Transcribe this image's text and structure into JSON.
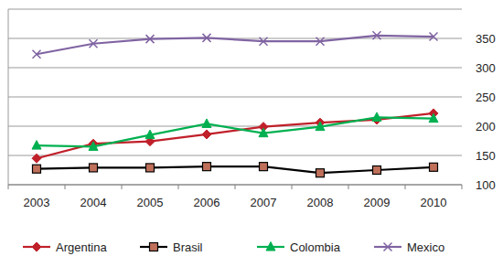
{
  "chart_data": {
    "type": "line",
    "categories": [
      "2003",
      "2004",
      "2005",
      "2006",
      "2007",
      "2008",
      "2009",
      "2010"
    ],
    "series": [
      {
        "name": "Argentina",
        "color": "#c0202a",
        "marker": "diamond",
        "values": [
          145,
          170,
          174,
          186,
          199,
          206,
          211,
          222
        ]
      },
      {
        "name": "Brasil",
        "color": "#000000",
        "marker": "square",
        "values": [
          127,
          129,
          129,
          131,
          131,
          120,
          125,
          130
        ]
      },
      {
        "name": "Colombia",
        "color": "#00b050",
        "marker": "triangle",
        "values": [
          167,
          165,
          185,
          204,
          188,
          199,
          215,
          213
        ]
      },
      {
        "name": "Mexico",
        "color": "#8064a2",
        "marker": "x",
        "values": [
          323,
          341,
          349,
          351,
          345,
          345,
          355,
          353
        ]
      }
    ],
    "ylim": [
      100,
      400
    ],
    "yticks": [
      100,
      150,
      200,
      250,
      300,
      350
    ],
    "grid": true,
    "legend": "bottom"
  }
}
